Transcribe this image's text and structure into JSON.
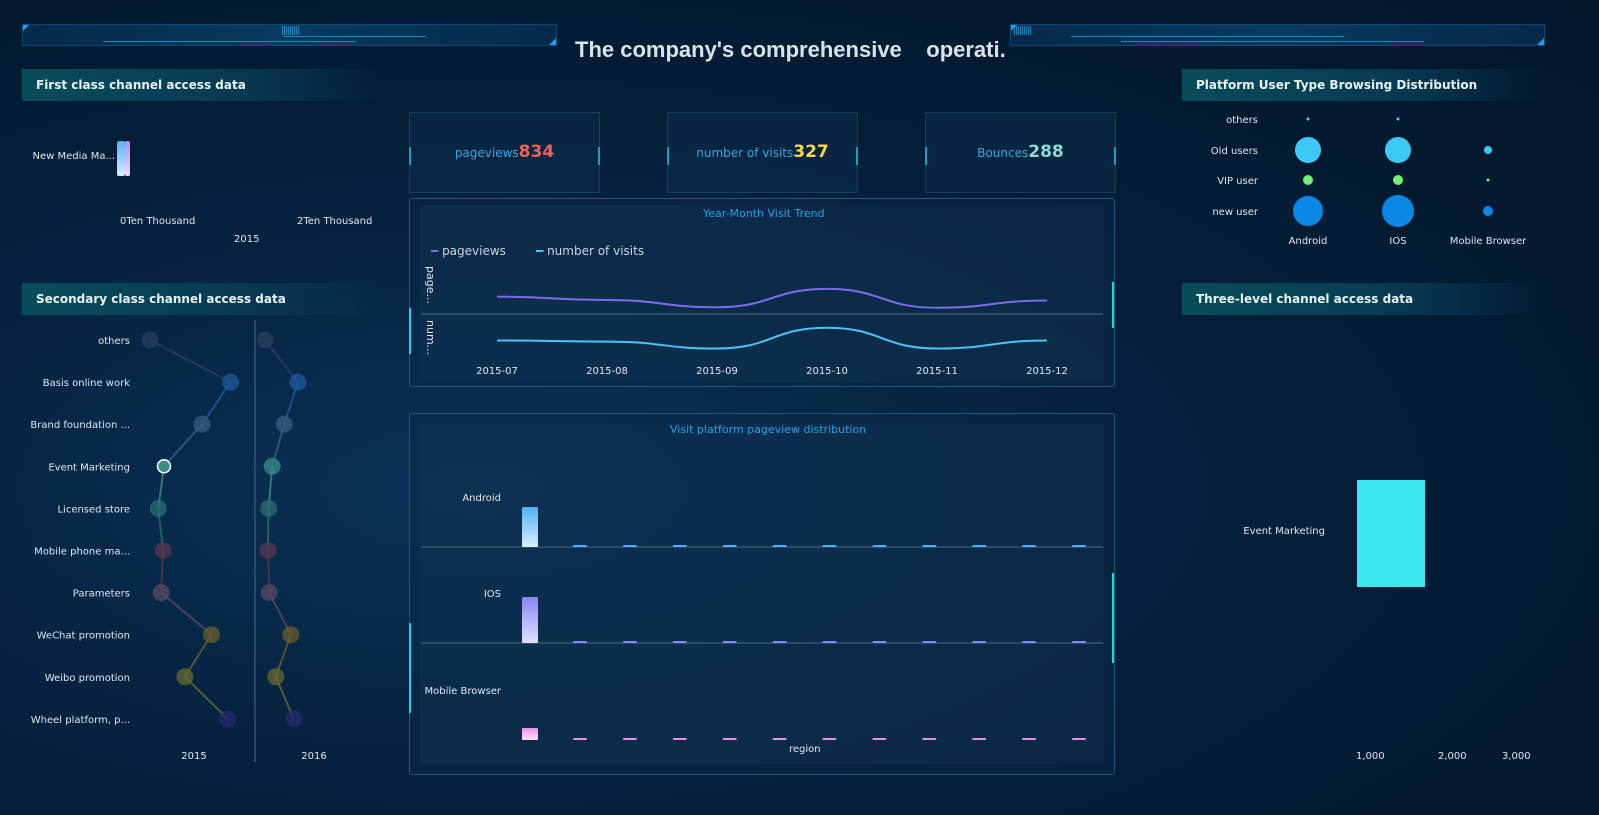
{
  "header": {
    "title": "The company's comprehensive operati...",
    "title_main": "The company's comprehensive",
    "title_tail": "operati..."
  },
  "colors": {
    "accent": "#18d6e0",
    "pageviews": "#7b6be8",
    "visits": "#4cc4f0",
    "pageviews_value": "#f0605a",
    "visits_value": "#f8d84a",
    "bounces_value": "#8fd8d0"
  },
  "kpis": [
    {
      "label": "pageviews",
      "value": "834"
    },
    {
      "label": "number of visits",
      "value": "327"
    },
    {
      "label": "Bounces",
      "value": "288"
    }
  ],
  "first_class": {
    "title": "First class channel access data",
    "category": "New Media Ma...",
    "ticks": [
      "0Ten Thousand",
      "2Ten Thousand"
    ],
    "year": "2015"
  },
  "secondary": {
    "title": "Secondary class channel access data"
  },
  "platform_user": {
    "title": "Platform User Type Browsing Distribution"
  },
  "three_level": {
    "title": "Three-level channel access data"
  },
  "chart_data": [
    {
      "type": "bar",
      "title": "First class channel access data",
      "categories": [
        "New Media Ma..."
      ],
      "series": [
        {
          "name": "2015",
          "values": [
            0.2
          ]
        }
      ],
      "xlabel": "2015",
      "xticks": [
        "0Ten Thousand",
        "2Ten Thousand"
      ]
    },
    {
      "type": "scatter",
      "title": "Secondary class channel access data",
      "categories": [
        "others",
        "Basis online work",
        "Brand foundation ...",
        "Event Marketing",
        "Licensed store",
        "Mobile phone ma...",
        "Parameters",
        "WeChat promotion",
        "Weibo promotion",
        "Wheel platform, p..."
      ],
      "series": [
        {
          "name": "2015",
          "values": [
            5,
            90,
            60,
            20,
            14,
            19,
            17,
            70,
            42,
            87
          ]
        },
        {
          "name": "2016",
          "values": [
            5,
            60,
            37,
            17,
            11,
            10,
            12,
            48,
            23,
            53
          ]
        }
      ],
      "colors": [
        "#2b3d60",
        "#1d5a9c",
        "#3b5c80",
        "#3a8c8a",
        "#2b6e72",
        "#553850",
        "#5a4862",
        "#6a5e2e",
        "#686a30",
        "#26286e"
      ],
      "highlight": "Event Marketing"
    },
    {
      "type": "line",
      "title": "Year-Month Visit Trend",
      "x": [
        "2015-07",
        "2015-08",
        "2015-09",
        "2015-10",
        "2015-11",
        "2015-12"
      ],
      "series": [
        {
          "name": "pageviews",
          "short": "page...",
          "values": [
            64,
            58,
            45,
            78,
            44,
            57
          ]
        },
        {
          "name": "number of visits",
          "short": "num...",
          "values": [
            60,
            58,
            46,
            82,
            46,
            60
          ]
        }
      ]
    },
    {
      "type": "bar",
      "title": "Visit platform pageview distribution",
      "xlabel": "region",
      "rows": [
        "Android",
        "IOS",
        "Mobile Browser"
      ],
      "series": [
        {
          "name": "Android",
          "values": [
            40,
            1,
            1,
            1,
            1,
            1,
            1,
            1,
            1,
            1,
            1,
            1
          ],
          "color": "#4fb0f0"
        },
        {
          "name": "IOS",
          "values": [
            46,
            1,
            1,
            1,
            1,
            1,
            1,
            1,
            1,
            1,
            1,
            1
          ],
          "color": "#8a86f0"
        },
        {
          "name": "Mobile Browser",
          "values": [
            12,
            1,
            1,
            1,
            1,
            1,
            1,
            1,
            1,
            1,
            1,
            1
          ],
          "color": "#e890e8"
        }
      ]
    },
    {
      "type": "scatter",
      "title": "Platform User Type Browsing Distribution",
      "x": [
        "Android",
        "IOS",
        "Mobile Browser"
      ],
      "y": [
        "others",
        "Old users",
        "VIP user",
        "new user"
      ],
      "values": [
        [
          2,
          2,
          0
        ],
        [
          170,
          170,
          16
        ],
        [
          25,
          25,
          2
        ],
        [
          225,
          256,
          25
        ]
      ],
      "colors": {
        "others": "#4cd0f0",
        "Old users": "#3ccaf4",
        "VIP user": "#72f070",
        "new user": "#0a88e6"
      }
    },
    {
      "type": "bar",
      "title": "Three-level channel access data",
      "categories": [
        "Event Marketing"
      ],
      "values": [
        1600
      ],
      "xticks": [
        "1,000",
        "2,000",
        "3,000"
      ],
      "color": "#3ce8f0"
    }
  ]
}
